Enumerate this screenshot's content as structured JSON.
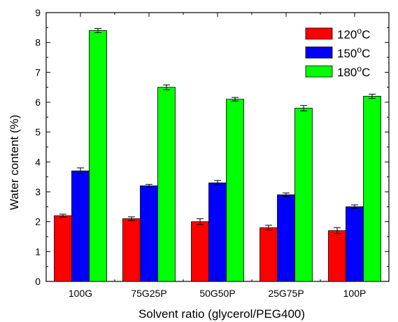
{
  "chart_data": {
    "type": "bar",
    "categories": [
      "100G",
      "75G25P",
      "50G50P",
      "25G75P",
      "100P"
    ],
    "series": [
      {
        "name": "120°C",
        "name_parts": {
          "number": "120",
          "degree": "o",
          "unit": "C"
        },
        "color": "#ff0000",
        "values": [
          2.2,
          2.1,
          2.0,
          1.8,
          1.7
        ],
        "errors": [
          0.05,
          0.06,
          0.1,
          0.08,
          0.1
        ]
      },
      {
        "name": "150°C",
        "name_parts": {
          "number": "150",
          "degree": "o",
          "unit": "C"
        },
        "color": "#0000ff",
        "values": [
          3.7,
          3.2,
          3.3,
          2.9,
          2.5
        ],
        "errors": [
          0.1,
          0.05,
          0.08,
          0.06,
          0.06
        ]
      },
      {
        "name": "180°C",
        "name_parts": {
          "number": "180",
          "degree": "o",
          "unit": "C"
        },
        "color": "#00ff00",
        "values": [
          8.4,
          6.5,
          6.1,
          5.8,
          6.2
        ],
        "errors": [
          0.07,
          0.08,
          0.06,
          0.09,
          0.07
        ]
      }
    ],
    "xlabel": "Solvent ratio (glycerol/PEG400)",
    "ylabel": "Water content (%)",
    "ylim": [
      0,
      9
    ],
    "yticks": [
      "0",
      "1",
      "2",
      "3",
      "4",
      "5",
      "6",
      "7",
      "8",
      "9"
    ],
    "grid": false,
    "legend_position": "top-right"
  }
}
